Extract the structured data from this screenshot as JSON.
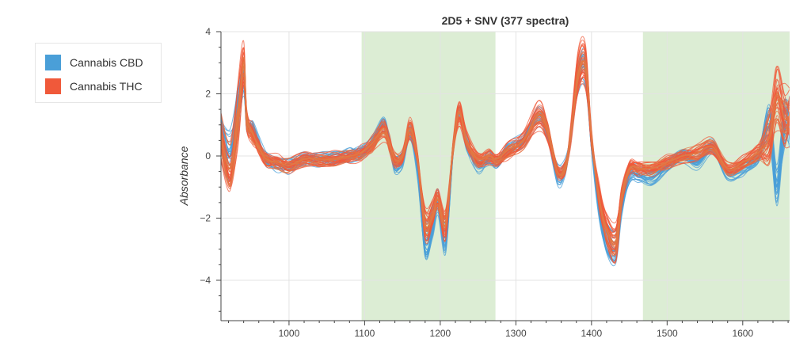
{
  "chart_data": {
    "type": "line",
    "title": "2D5 + SNV (377 spectra)",
    "xlabel": "",
    "ylabel": "Absorbance",
    "xlim": [
      910,
      1662
    ],
    "ylim": [
      -5.3,
      4.0
    ],
    "x_ticks": [
      1000,
      1100,
      1200,
      1300,
      1400,
      1500,
      1600
    ],
    "y_ticks": [
      -4,
      -2,
      0,
      2,
      4
    ],
    "grid": true,
    "legend_position": "left, outside plot",
    "highlighted_x_ranges": [
      [
        1096,
        1273
      ],
      [
        1468,
        1662
      ]
    ],
    "highlight_color": "#dcedd4",
    "colors": {
      "Cannabis CBD": "#4a9fd8",
      "Cannabis THC": "#f0593a",
      "overlap": "#e07a45"
    },
    "series_count": 377,
    "x": [
      910,
      922,
      932,
      940,
      944,
      952,
      960,
      970,
      985,
      1000,
      1020,
      1040,
      1060,
      1080,
      1095,
      1110,
      1125,
      1133,
      1140,
      1150,
      1160,
      1170,
      1180,
      1190,
      1197,
      1207,
      1217,
      1225,
      1235,
      1250,
      1265,
      1275,
      1290,
      1310,
      1330,
      1342,
      1355,
      1365,
      1372,
      1382,
      1392,
      1400,
      1410,
      1420,
      1432,
      1440,
      1450,
      1462,
      1480,
      1500,
      1520,
      1540,
      1560,
      1580,
      1600,
      1620,
      1635,
      1645,
      1655,
      1662
    ],
    "series": [
      {
        "name": "Cannabis CBD",
        "values": [
          0.6,
          0.0,
          1.4,
          2.5,
          1.1,
          0.9,
          0.4,
          -0.1,
          -0.3,
          -0.3,
          -0.1,
          -0.1,
          -0.1,
          0.0,
          0.1,
          0.4,
          1.0,
          0.4,
          -0.3,
          -0.1,
          0.8,
          -0.5,
          -2.8,
          -2.2,
          -1.5,
          -2.6,
          0.2,
          1.4,
          0.4,
          -0.3,
          -0.1,
          -0.2,
          0.2,
          0.5,
          1.3,
          0.7,
          -0.6,
          -0.4,
          0.6,
          2.5,
          2.8,
          0.4,
          -1.6,
          -2.7,
          -3.0,
          -1.6,
          -0.6,
          -0.6,
          -0.7,
          -0.3,
          0.0,
          -0.2,
          0.3,
          -0.5,
          -0.4,
          0.0,
          0.9,
          -1.0,
          1.0,
          1.0
        ]
      },
      {
        "name": "Cannabis THC",
        "values": [
          0.5,
          -0.4,
          1.3,
          2.9,
          1.2,
          0.7,
          0.3,
          -0.1,
          -0.2,
          -0.3,
          -0.1,
          -0.1,
          -0.1,
          0.0,
          0.1,
          0.4,
          0.9,
          0.4,
          -0.1,
          0.0,
          0.9,
          -0.1,
          -2.2,
          -1.9,
          -1.4,
          -2.2,
          0.3,
          1.4,
          0.5,
          -0.1,
          0.0,
          -0.1,
          0.2,
          0.5,
          1.3,
          0.8,
          -0.5,
          -0.4,
          0.6,
          2.6,
          2.9,
          0.6,
          -1.3,
          -2.4,
          -2.8,
          -1.3,
          -0.4,
          -0.4,
          -0.4,
          -0.2,
          0.0,
          0.1,
          0.3,
          -0.4,
          -0.2,
          0.1,
          0.6,
          2.0,
          1.2,
          1.3
        ]
      }
    ]
  }
}
